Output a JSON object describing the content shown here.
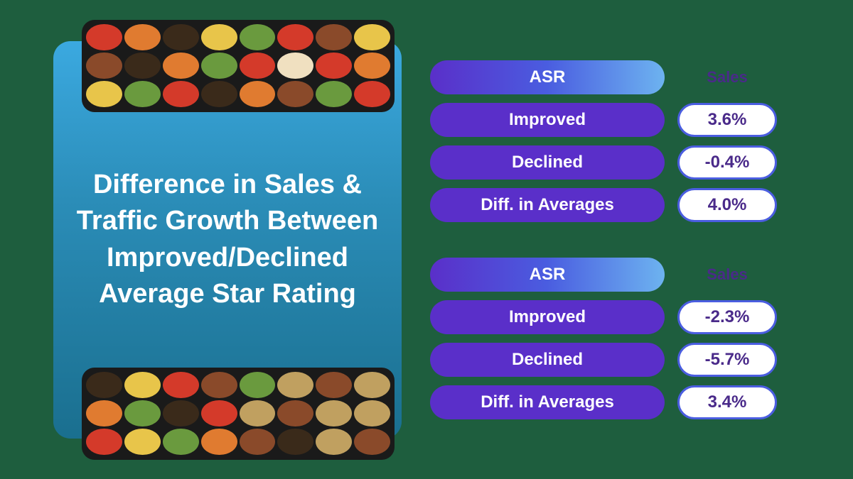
{
  "card": {
    "title": "Difference in Sales & Traffic Growth Between Improved/Declined Average Star Rating",
    "title_color": "#ffffff",
    "title_fontsize": 38,
    "title_fontweight": 700,
    "background_gradient": [
      "#3ba9e0",
      "#2b8db8",
      "#1a6f8f"
    ],
    "border_radius": 24
  },
  "tables": [
    {
      "header": "ASR",
      "value_column_header": "Sales",
      "rows": [
        {
          "label": "Improved",
          "value": "3.6%"
        },
        {
          "label": "Declined",
          "value": "-0.4%"
        },
        {
          "label": "Diff. in Averages",
          "value": "4.0%"
        }
      ]
    },
    {
      "header": "ASR",
      "value_column_header": "Sales",
      "rows": [
        {
          "label": "Improved",
          "value": "-2.3%"
        },
        {
          "label": "Declined",
          "value": "-5.7%"
        },
        {
          "label": "Diff. in Averages",
          "value": "3.4%"
        }
      ]
    }
  ],
  "styling": {
    "page_background": "#1e5e3e",
    "header_pill_gradient": [
      "#5a2fc9",
      "#4a5de0",
      "#6db3f0"
    ],
    "label_pill_background": "#5a2fc9",
    "label_pill_text_color": "#ffffff",
    "value_pill_background": "#ffffff",
    "value_pill_text_color": "#4a2a8a",
    "value_pill_border_color": "#4a5de0",
    "column_header_color": "#4a2a8a",
    "pill_fontsize": 24,
    "pill_height": 48,
    "pill_radius": 999
  },
  "food_image_palette": [
    "#d43a2a",
    "#e8c54a",
    "#6a9a3e",
    "#e07b30",
    "#8a4a2a",
    "#f0e0c0",
    "#3a2a1a",
    "#c0a060"
  ]
}
